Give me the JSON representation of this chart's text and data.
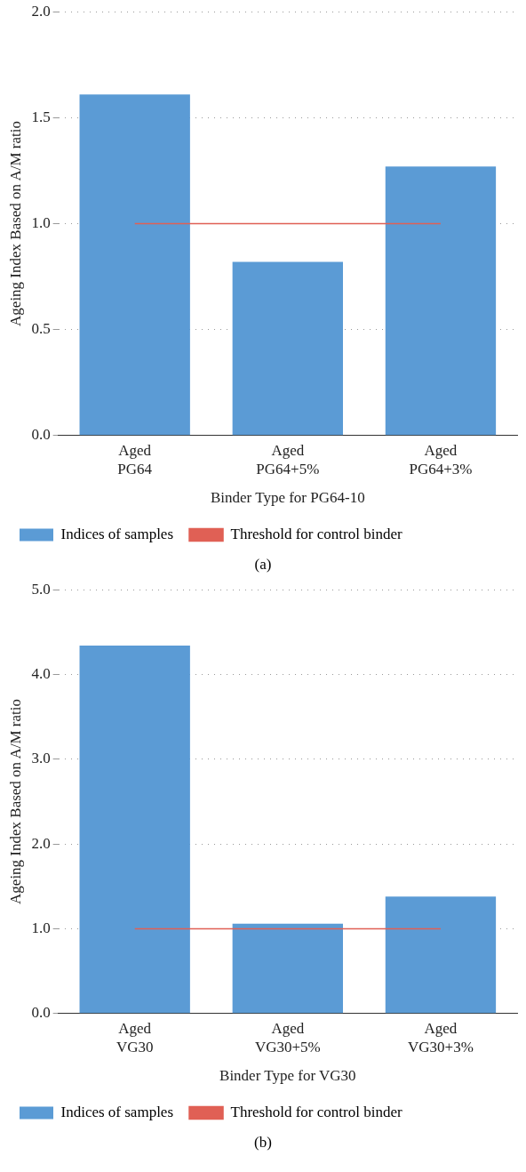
{
  "chart_data": [
    {
      "type": "bar",
      "xlabel": "Binder Type for PG64-10",
      "ylabel": "Ageing Index Based on A/M ratio",
      "categories": [
        "Aged PG64",
        "Aged PG64+5%",
        "Aged PG64+3%"
      ],
      "series": [
        {
          "name": "Indices of samples",
          "color": "#5b9bd5",
          "values": [
            1.61,
            0.82,
            1.27
          ]
        },
        {
          "name": "Threshold for control binder",
          "type": "line",
          "color": "#e06055",
          "values": [
            1.0,
            1.0,
            1.0
          ]
        }
      ],
      "ylim": [
        0,
        2
      ],
      "yticks": [
        {
          "value": 0,
          "label": "0.0"
        },
        {
          "value": 0.5,
          "label": "0.5"
        },
        {
          "value": 1,
          "label": "1.0"
        },
        {
          "value": 1.5,
          "label": "1.5"
        },
        {
          "value": 2,
          "label": "2.0"
        }
      ],
      "grid": "y",
      "legend": "bottom",
      "marker": "none",
      "annotations": [
        "(a)"
      ]
    },
    {
      "type": "bar",
      "xlabel": "Binder Type for VG30",
      "ylabel": "Ageing Index Based on A/M ratio",
      "categories": [
        "Aged VG30",
        "Aged VG30+5%",
        "Aged VG30+3%"
      ],
      "series": [
        {
          "name": "Indices of samples",
          "color": "#5b9bd5",
          "values": [
            4.34,
            1.06,
            1.38
          ]
        },
        {
          "name": "Threshold for control binder",
          "type": "line",
          "color": "#e06055",
          "values": [
            1.0,
            1.0,
            1.0
          ]
        }
      ],
      "ylim": [
        0,
        5
      ],
      "yticks": [
        {
          "value": 0,
          "label": "0.0"
        },
        {
          "value": 1,
          "label": "1.0"
        },
        {
          "value": 2,
          "label": "2.0"
        },
        {
          "value": 3,
          "label": "3.0"
        },
        {
          "value": 4,
          "label": "4.0"
        },
        {
          "value": 5,
          "label": "5.0"
        }
      ],
      "grid": "y",
      "legend": "bottom",
      "marker": "none",
      "annotations": [
        "(b)"
      ]
    }
  ]
}
